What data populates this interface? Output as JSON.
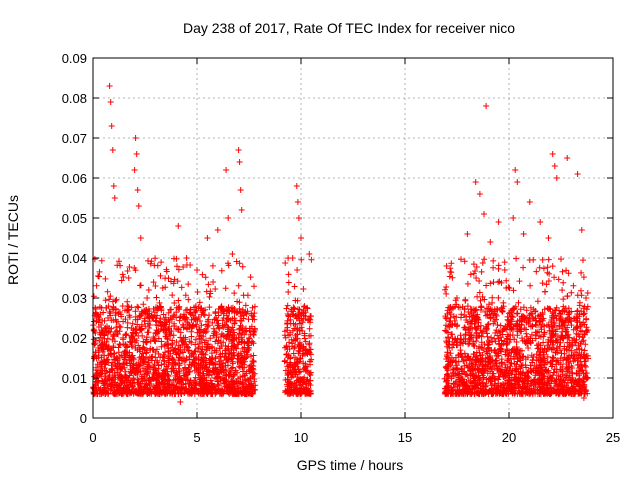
{
  "chart_data": {
    "type": "scatter",
    "title": "Day 238 of 2017, Rate Of TEC Index for receiver nico",
    "xlabel": "GPS time / hours",
    "ylabel": "ROTI / TECUs",
    "xlim": [
      0,
      25
    ],
    "ylim": [
      0,
      0.09
    ],
    "x_ticks": [
      0,
      5,
      10,
      15,
      20,
      25
    ],
    "x_tick_labels": [
      "0",
      "5",
      "10",
      "15",
      "20",
      "25"
    ],
    "y_ticks": [
      0,
      0.01,
      0.02,
      0.03,
      0.04,
      0.05,
      0.06,
      0.07,
      0.08,
      0.09
    ],
    "y_tick_labels": [
      "0",
      "0.01",
      "0.02",
      "0.03",
      "0.04",
      "0.05",
      "0.06",
      "0.07",
      "0.08",
      "0.09"
    ],
    "grid": true,
    "marker": "+",
    "marker_color": "#ff0000",
    "point_density_note_intervals_hours": [
      [
        0.0,
        7.8
      ],
      [
        9.2,
        10.5
      ],
      [
        16.9,
        23.8
      ]
    ],
    "series": [
      {
        "values": [
          [
            0.15,
            0.012
          ],
          [
            0.35,
            0.018
          ],
          [
            0.55,
            0.009
          ],
          [
            0.72,
            0.025
          ],
          [
            0.8,
            0.083
          ],
          [
            0.85,
            0.079
          ],
          [
            0.9,
            0.073
          ],
          [
            0.95,
            0.067
          ],
          [
            1.0,
            0.058
          ],
          [
            1.05,
            0.055
          ],
          [
            1.2,
            0.021
          ],
          [
            1.5,
            0.015
          ],
          [
            1.8,
            0.019
          ],
          [
            2.0,
            0.062
          ],
          [
            2.05,
            0.07
          ],
          [
            2.1,
            0.066
          ],
          [
            2.15,
            0.057
          ],
          [
            2.2,
            0.053
          ],
          [
            2.3,
            0.045
          ],
          [
            2.6,
            0.03
          ],
          [
            3.0,
            0.033
          ],
          [
            3.5,
            0.022
          ],
          [
            4.1,
            0.048
          ],
          [
            4.2,
            0.004
          ],
          [
            4.5,
            0.04
          ],
          [
            5.0,
            0.037
          ],
          [
            5.5,
            0.045
          ],
          [
            6.0,
            0.047
          ],
          [
            6.4,
            0.062
          ],
          [
            6.5,
            0.05
          ],
          [
            6.7,
            0.041
          ],
          [
            7.0,
            0.067
          ],
          [
            7.05,
            0.064
          ],
          [
            7.1,
            0.057
          ],
          [
            7.15,
            0.052
          ],
          [
            7.5,
            0.02
          ],
          [
            7.7,
            0.013
          ],
          [
            9.3,
            0.018
          ],
          [
            9.6,
            0.04
          ],
          [
            9.8,
            0.058
          ],
          [
            9.85,
            0.054
          ],
          [
            9.9,
            0.05
          ],
          [
            10.0,
            0.045
          ],
          [
            10.4,
            0.041
          ],
          [
            10.2,
            0.006
          ],
          [
            17.0,
            0.038
          ],
          [
            17.5,
            0.03
          ],
          [
            18.0,
            0.046
          ],
          [
            18.4,
            0.059
          ],
          [
            18.6,
            0.056
          ],
          [
            18.8,
            0.051
          ],
          [
            18.9,
            0.078
          ],
          [
            19.1,
            0.044
          ],
          [
            19.5,
            0.049
          ],
          [
            19.8,
            0.037
          ],
          [
            20.2,
            0.05
          ],
          [
            20.3,
            0.062
          ],
          [
            20.4,
            0.059
          ],
          [
            20.7,
            0.046
          ],
          [
            21.0,
            0.054
          ],
          [
            21.5,
            0.049
          ],
          [
            21.9,
            0.045
          ],
          [
            22.1,
            0.066
          ],
          [
            22.2,
            0.063
          ],
          [
            22.3,
            0.06
          ],
          [
            22.8,
            0.065
          ],
          [
            23.3,
            0.061
          ],
          [
            23.5,
            0.047
          ],
          [
            23.7,
            0.03
          ],
          [
            23.6,
            0.005
          ]
        ]
      }
    ]
  }
}
